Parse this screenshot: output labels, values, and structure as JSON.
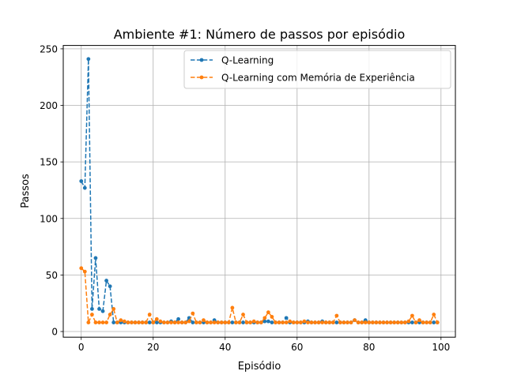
{
  "chart_data": {
    "type": "line",
    "title": "Ambiente #1: Número de passos por episódio",
    "xlabel": "Episódio",
    "ylabel": "Passos",
    "xlim": [
      -5,
      104
    ],
    "ylim": [
      -5,
      253
    ],
    "xticks": [
      0,
      20,
      40,
      60,
      80,
      100
    ],
    "yticks": [
      0,
      50,
      100,
      150,
      200,
      250
    ],
    "grid": true,
    "legend_position": "upper-right",
    "series": [
      {
        "name": "Q-Learning",
        "color": "#1f77b4",
        "linestyle": "dashed",
        "marker": "circle",
        "values": [
          133,
          127,
          241,
          20,
          65,
          20,
          18,
          45,
          40,
          8,
          8,
          8,
          8,
          8,
          8,
          8,
          8,
          8,
          8,
          8,
          8,
          8,
          8,
          8,
          8,
          9,
          8,
          11,
          8,
          8,
          12,
          8,
          8,
          8,
          8,
          8,
          8,
          10,
          8,
          8,
          8,
          8,
          8,
          8,
          8,
          8,
          8,
          8,
          8,
          8,
          8,
          9,
          9,
          8,
          8,
          8,
          8,
          12,
          8,
          8,
          8,
          8,
          8,
          9,
          8,
          8,
          8,
          9,
          8,
          8,
          8,
          8,
          8,
          8,
          8,
          8,
          10,
          8,
          8,
          10,
          8,
          8,
          8,
          8,
          8,
          8,
          8,
          8,
          8,
          8,
          8,
          8,
          8,
          8,
          8,
          8,
          8,
          8,
          8,
          8
        ]
      },
      {
        "name": "Q-Learning com Memória de Experiência",
        "color": "#ff7f0e",
        "linestyle": "dashed",
        "marker": "circle",
        "values": [
          56,
          53,
          8,
          15,
          8,
          8,
          8,
          8,
          15,
          20,
          8,
          10,
          9,
          8,
          8,
          8,
          8,
          8,
          8,
          15,
          8,
          11,
          9,
          8,
          8,
          8,
          8,
          8,
          8,
          8,
          9,
          16,
          8,
          8,
          10,
          8,
          8,
          8,
          8,
          8,
          8,
          8,
          21,
          8,
          8,
          15,
          8,
          8,
          9,
          8,
          8,
          12,
          17,
          13,
          8,
          8,
          8,
          8,
          9,
          8,
          8,
          8,
          9,
          8,
          8,
          8,
          8,
          8,
          8,
          8,
          8,
          14,
          8,
          8,
          8,
          8,
          10,
          8,
          8,
          8,
          8,
          8,
          8,
          8,
          8,
          8,
          8,
          8,
          8,
          8,
          8,
          9,
          14,
          8,
          10,
          8,
          8,
          8,
          15,
          8
        ]
      }
    ]
  }
}
